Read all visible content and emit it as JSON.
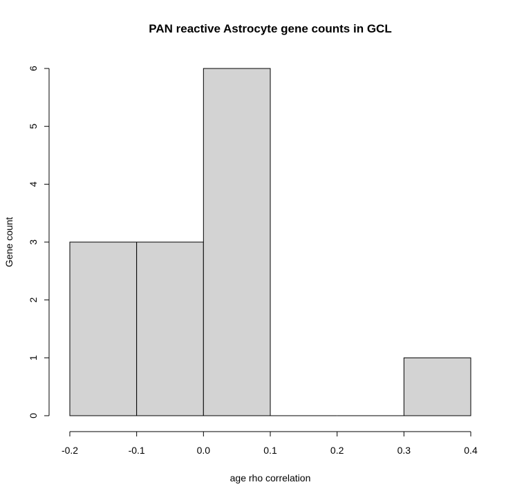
{
  "chart_data": {
    "type": "bar",
    "title": "PAN reactive Astrocyte gene counts in GCL",
    "xlabel": "age rho correlation",
    "ylabel": "Gene count",
    "bins": [
      {
        "start": -0.2,
        "end": -0.1,
        "count": 3
      },
      {
        "start": -0.1,
        "end": 0.0,
        "count": 3
      },
      {
        "start": 0.0,
        "end": 0.1,
        "count": 6
      },
      {
        "start": 0.1,
        "end": 0.2,
        "count": 0
      },
      {
        "start": 0.2,
        "end": 0.3,
        "count": 0
      },
      {
        "start": 0.3,
        "end": 0.4,
        "count": 1
      }
    ],
    "xlim": [
      -0.2,
      0.4
    ],
    "ylim": [
      0,
      6
    ],
    "x_ticks": [
      "-0.2",
      "-0.1",
      "0.0",
      "0.1",
      "0.2",
      "0.3",
      "0.4"
    ],
    "y_ticks": [
      "0",
      "1",
      "2",
      "3",
      "4",
      "5",
      "6"
    ],
    "grid": false,
    "bar_fill": "#d3d3d3",
    "bar_stroke": "#000000"
  }
}
